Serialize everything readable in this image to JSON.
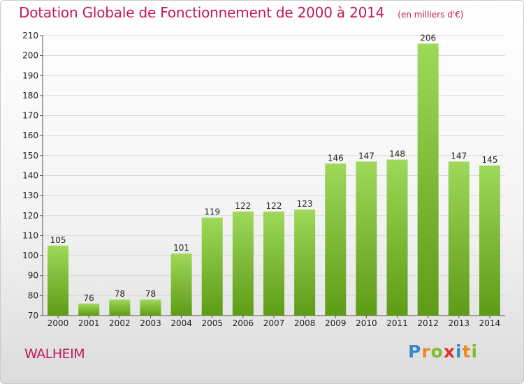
{
  "title": "Dotation Globale de Fonctionnement de 2000 à 2014",
  "unit": "(en milliers d'€)",
  "city": "WALHEIM",
  "logo": {
    "letters": [
      "P",
      "r",
      "o",
      "x",
      "i",
      "t",
      "i"
    ],
    "colors": [
      "#3a88c9",
      "#f08a1c",
      "#7bbf2a",
      "#d9342b",
      "#3a88c9",
      "#f08a1c",
      "#7bbf2a"
    ]
  },
  "colors": {
    "bar_top": "#9ed95a",
    "bar_bottom": "#5e9b16",
    "title": "#c2185b",
    "grid": "#d8d8d8"
  },
  "chart_data": {
    "type": "bar",
    "categories": [
      "2000",
      "2001",
      "2002",
      "2003",
      "2004",
      "2005",
      "2006",
      "2007",
      "2008",
      "2009",
      "2010",
      "2011",
      "2012",
      "2013",
      "2014"
    ],
    "values": [
      105,
      76,
      78,
      78,
      101,
      119,
      122,
      122,
      123,
      146,
      147,
      148,
      206,
      147,
      145
    ],
    "ylim": [
      70,
      210
    ],
    "yticks": [
      70,
      80,
      90,
      100,
      110,
      120,
      130,
      140,
      150,
      160,
      170,
      180,
      190,
      200,
      210
    ],
    "grid": true,
    "data_labels": true
  }
}
